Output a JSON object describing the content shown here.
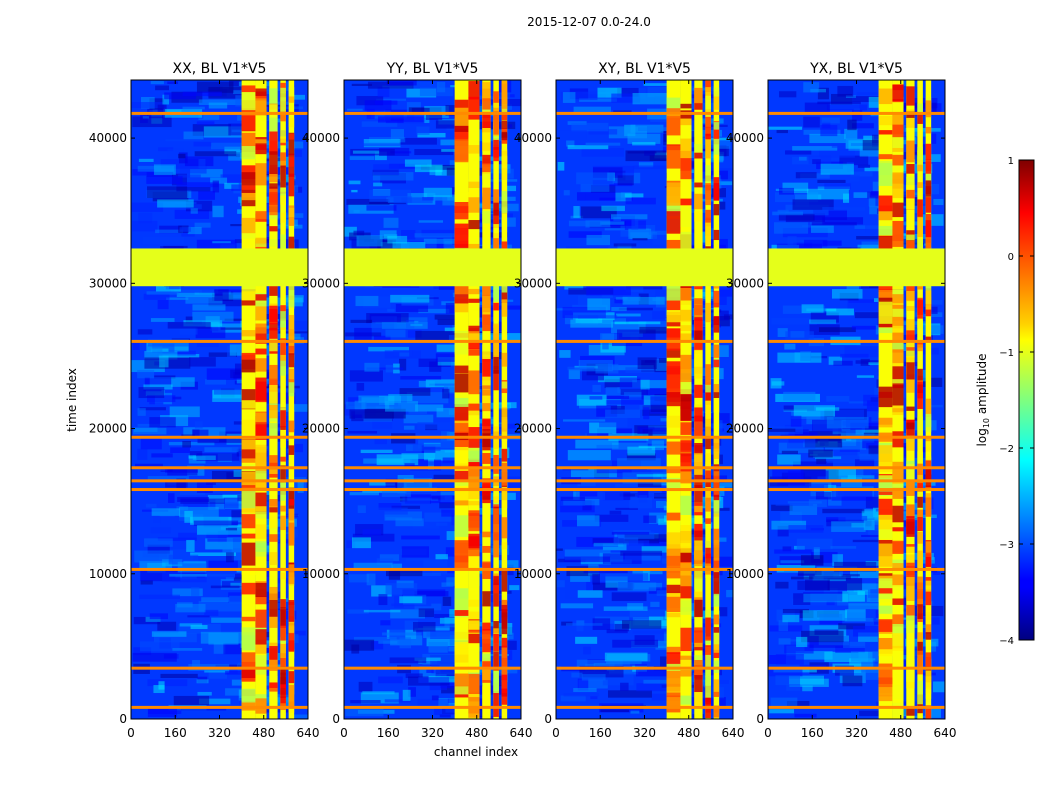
{
  "figure_title": "2015-12-07 0.0-24.0",
  "chart_data": {
    "type": "heatmap",
    "title": "2015-12-07 0.0-24.0",
    "xlabel": "channel index",
    "ylabel": "time index",
    "xlim": [
      0,
      640
    ],
    "ylim": [
      0,
      44000
    ],
    "xticks": [
      0,
      160,
      320,
      480,
      640
    ],
    "yticks": [
      0,
      10000,
      20000,
      30000,
      40000
    ],
    "panels": [
      {
        "title": "XX, BL V1*V5",
        "polarization": "XX"
      },
      {
        "title": "YY, BL V1*V5",
        "polarization": "YY"
      },
      {
        "title": "XY, BL V1*V5",
        "polarization": "XY"
      },
      {
        "title": "YX, BL V1*V5",
        "polarization": "YX"
      }
    ],
    "colormap": "jet",
    "colorbar": {
      "label_prefix": "log",
      "label_subscript": "10",
      "label_suffix": " amplitude",
      "range": [
        -4,
        1
      ],
      "ticks": [
        -4,
        -3,
        -2,
        -1,
        0,
        1
      ]
    },
    "bright_channel_bands": [
      [
        400,
        450
      ],
      [
        450,
        490
      ],
      [
        500,
        530
      ],
      [
        540,
        560
      ],
      [
        570,
        590
      ]
    ],
    "flagged_time_range": [
      29800,
      32400
    ],
    "flagged_log_amplitude": -1.0,
    "rfi_time_rows": [
      800,
      3500,
      10300,
      15800,
      16400,
      17300,
      19400,
      26000,
      41700
    ]
  }
}
